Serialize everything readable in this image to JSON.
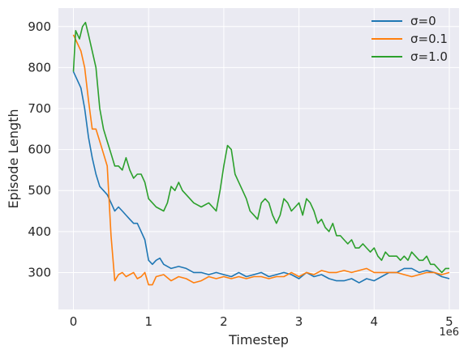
{
  "chart_data": {
    "type": "line",
    "xlabel": "Timestep",
    "ylabel": "Episode Length",
    "x_offset_label": "1e6",
    "xlim": [
      -0.2,
      5.13
    ],
    "ylim": [
      210,
      945
    ],
    "x_ticks": [
      0,
      1,
      2,
      3,
      4,
      5
    ],
    "x_tick_labels": [
      "0",
      "1",
      "2",
      "3",
      "4",
      "5"
    ],
    "y_ticks": [
      300,
      400,
      500,
      600,
      700,
      800,
      900
    ],
    "y_tick_labels": [
      "300",
      "400",
      "500",
      "600",
      "700",
      "800",
      "900"
    ],
    "grid": true,
    "legend_position": "top-right",
    "series": [
      {
        "name": "σ=0",
        "color": "#1f77b4",
        "points": [
          [
            0,
            790
          ],
          [
            0.05,
            770
          ],
          [
            0.1,
            750
          ],
          [
            0.15,
            700
          ],
          [
            0.2,
            630
          ],
          [
            0.25,
            580
          ],
          [
            0.3,
            540
          ],
          [
            0.35,
            510
          ],
          [
            0.4,
            500
          ],
          [
            0.45,
            490
          ],
          [
            0.5,
            470
          ],
          [
            0.55,
            450
          ],
          [
            0.6,
            460
          ],
          [
            0.65,
            450
          ],
          [
            0.7,
            440
          ],
          [
            0.75,
            430
          ],
          [
            0.8,
            420
          ],
          [
            0.85,
            420
          ],
          [
            0.9,
            400
          ],
          [
            0.95,
            380
          ],
          [
            1.0,
            330
          ],
          [
            1.05,
            320
          ],
          [
            1.1,
            330
          ],
          [
            1.15,
            335
          ],
          [
            1.2,
            320
          ],
          [
            1.3,
            310
          ],
          [
            1.4,
            315
          ],
          [
            1.5,
            310
          ],
          [
            1.6,
            300
          ],
          [
            1.7,
            300
          ],
          [
            1.8,
            295
          ],
          [
            1.9,
            300
          ],
          [
            2.0,
            295
          ],
          [
            2.1,
            290
          ],
          [
            2.2,
            300
          ],
          [
            2.3,
            290
          ],
          [
            2.4,
            295
          ],
          [
            2.5,
            300
          ],
          [
            2.6,
            290
          ],
          [
            2.7,
            295
          ],
          [
            2.8,
            300
          ],
          [
            2.9,
            295
          ],
          [
            3.0,
            285
          ],
          [
            3.1,
            300
          ],
          [
            3.2,
            290
          ],
          [
            3.3,
            295
          ],
          [
            3.4,
            285
          ],
          [
            3.5,
            280
          ],
          [
            3.6,
            280
          ],
          [
            3.7,
            285
          ],
          [
            3.8,
            275
          ],
          [
            3.9,
            285
          ],
          [
            4.0,
            280
          ],
          [
            4.1,
            290
          ],
          [
            4.2,
            300
          ],
          [
            4.3,
            300
          ],
          [
            4.4,
            310
          ],
          [
            4.5,
            310
          ],
          [
            4.6,
            300
          ],
          [
            4.7,
            305
          ],
          [
            4.8,
            300
          ],
          [
            4.9,
            290
          ],
          [
            5.0,
            285
          ]
        ]
      },
      {
        "name": "σ=0.1",
        "color": "#ff7f0e",
        "points": [
          [
            0,
            880
          ],
          [
            0.05,
            860
          ],
          [
            0.1,
            840
          ],
          [
            0.15,
            800
          ],
          [
            0.2,
            720
          ],
          [
            0.25,
            650
          ],
          [
            0.3,
            650
          ],
          [
            0.35,
            620
          ],
          [
            0.4,
            590
          ],
          [
            0.45,
            560
          ],
          [
            0.5,
            390
          ],
          [
            0.55,
            280
          ],
          [
            0.6,
            295
          ],
          [
            0.65,
            300
          ],
          [
            0.7,
            290
          ],
          [
            0.75,
            295
          ],
          [
            0.8,
            300
          ],
          [
            0.85,
            285
          ],
          [
            0.9,
            290
          ],
          [
            0.95,
            300
          ],
          [
            1.0,
            270
          ],
          [
            1.05,
            270
          ],
          [
            1.1,
            290
          ],
          [
            1.2,
            295
          ],
          [
            1.3,
            280
          ],
          [
            1.4,
            290
          ],
          [
            1.5,
            285
          ],
          [
            1.6,
            275
          ],
          [
            1.7,
            280
          ],
          [
            1.8,
            290
          ],
          [
            1.9,
            285
          ],
          [
            2.0,
            290
          ],
          [
            2.1,
            285
          ],
          [
            2.2,
            290
          ],
          [
            2.3,
            285
          ],
          [
            2.4,
            290
          ],
          [
            2.5,
            290
          ],
          [
            2.6,
            285
          ],
          [
            2.7,
            290
          ],
          [
            2.8,
            290
          ],
          [
            2.9,
            300
          ],
          [
            3.0,
            290
          ],
          [
            3.1,
            300
          ],
          [
            3.2,
            295
          ],
          [
            3.3,
            305
          ],
          [
            3.4,
            300
          ],
          [
            3.5,
            300
          ],
          [
            3.6,
            305
          ],
          [
            3.7,
            300
          ],
          [
            3.8,
            305
          ],
          [
            3.9,
            310
          ],
          [
            4.0,
            300
          ],
          [
            4.1,
            300
          ],
          [
            4.2,
            300
          ],
          [
            4.3,
            300
          ],
          [
            4.4,
            295
          ],
          [
            4.5,
            290
          ],
          [
            4.6,
            295
          ],
          [
            4.7,
            300
          ],
          [
            4.8,
            300
          ],
          [
            4.9,
            295
          ],
          [
            5.0,
            300
          ]
        ]
      },
      {
        "name": "σ=1.0",
        "color": "#2ca02c",
        "points": [
          [
            0,
            790
          ],
          [
            0.03,
            890
          ],
          [
            0.08,
            870
          ],
          [
            0.12,
            900
          ],
          [
            0.16,
            910
          ],
          [
            0.2,
            880
          ],
          [
            0.25,
            840
          ],
          [
            0.3,
            800
          ],
          [
            0.35,
            700
          ],
          [
            0.4,
            650
          ],
          [
            0.45,
            620
          ],
          [
            0.5,
            590
          ],
          [
            0.55,
            560
          ],
          [
            0.6,
            560
          ],
          [
            0.65,
            550
          ],
          [
            0.7,
            580
          ],
          [
            0.75,
            550
          ],
          [
            0.8,
            530
          ],
          [
            0.85,
            540
          ],
          [
            0.9,
            540
          ],
          [
            0.95,
            520
          ],
          [
            1.0,
            480
          ],
          [
            1.05,
            470
          ],
          [
            1.1,
            460
          ],
          [
            1.2,
            450
          ],
          [
            1.25,
            470
          ],
          [
            1.3,
            510
          ],
          [
            1.35,
            500
          ],
          [
            1.4,
            520
          ],
          [
            1.45,
            500
          ],
          [
            1.5,
            490
          ],
          [
            1.6,
            470
          ],
          [
            1.7,
            460
          ],
          [
            1.8,
            470
          ],
          [
            1.9,
            450
          ],
          [
            1.95,
            500
          ],
          [
            2.0,
            560
          ],
          [
            2.05,
            610
          ],
          [
            2.1,
            600
          ],
          [
            2.15,
            540
          ],
          [
            2.2,
            520
          ],
          [
            2.25,
            500
          ],
          [
            2.3,
            480
          ],
          [
            2.35,
            450
          ],
          [
            2.4,
            440
          ],
          [
            2.45,
            430
          ],
          [
            2.5,
            470
          ],
          [
            2.55,
            480
          ],
          [
            2.6,
            470
          ],
          [
            2.65,
            440
          ],
          [
            2.7,
            420
          ],
          [
            2.75,
            440
          ],
          [
            2.8,
            480
          ],
          [
            2.85,
            470
          ],
          [
            2.9,
            450
          ],
          [
            2.95,
            460
          ],
          [
            3.0,
            470
          ],
          [
            3.05,
            440
          ],
          [
            3.1,
            480
          ],
          [
            3.15,
            470
          ],
          [
            3.2,
            450
          ],
          [
            3.25,
            420
          ],
          [
            3.3,
            430
          ],
          [
            3.35,
            410
          ],
          [
            3.4,
            400
          ],
          [
            3.45,
            420
          ],
          [
            3.5,
            390
          ],
          [
            3.55,
            390
          ],
          [
            3.6,
            380
          ],
          [
            3.65,
            370
          ],
          [
            3.7,
            380
          ],
          [
            3.75,
            360
          ],
          [
            3.8,
            360
          ],
          [
            3.85,
            370
          ],
          [
            3.9,
            360
          ],
          [
            3.95,
            350
          ],
          [
            4.0,
            360
          ],
          [
            4.05,
            340
          ],
          [
            4.1,
            330
          ],
          [
            4.15,
            350
          ],
          [
            4.2,
            340
          ],
          [
            4.25,
            340
          ],
          [
            4.3,
            340
          ],
          [
            4.35,
            330
          ],
          [
            4.4,
            340
          ],
          [
            4.45,
            330
          ],
          [
            4.5,
            350
          ],
          [
            4.55,
            340
          ],
          [
            4.6,
            330
          ],
          [
            4.65,
            330
          ],
          [
            4.7,
            340
          ],
          [
            4.75,
            320
          ],
          [
            4.8,
            320
          ],
          [
            4.85,
            310
          ],
          [
            4.9,
            300
          ],
          [
            4.95,
            310
          ],
          [
            5.0,
            310
          ]
        ]
      }
    ]
  }
}
